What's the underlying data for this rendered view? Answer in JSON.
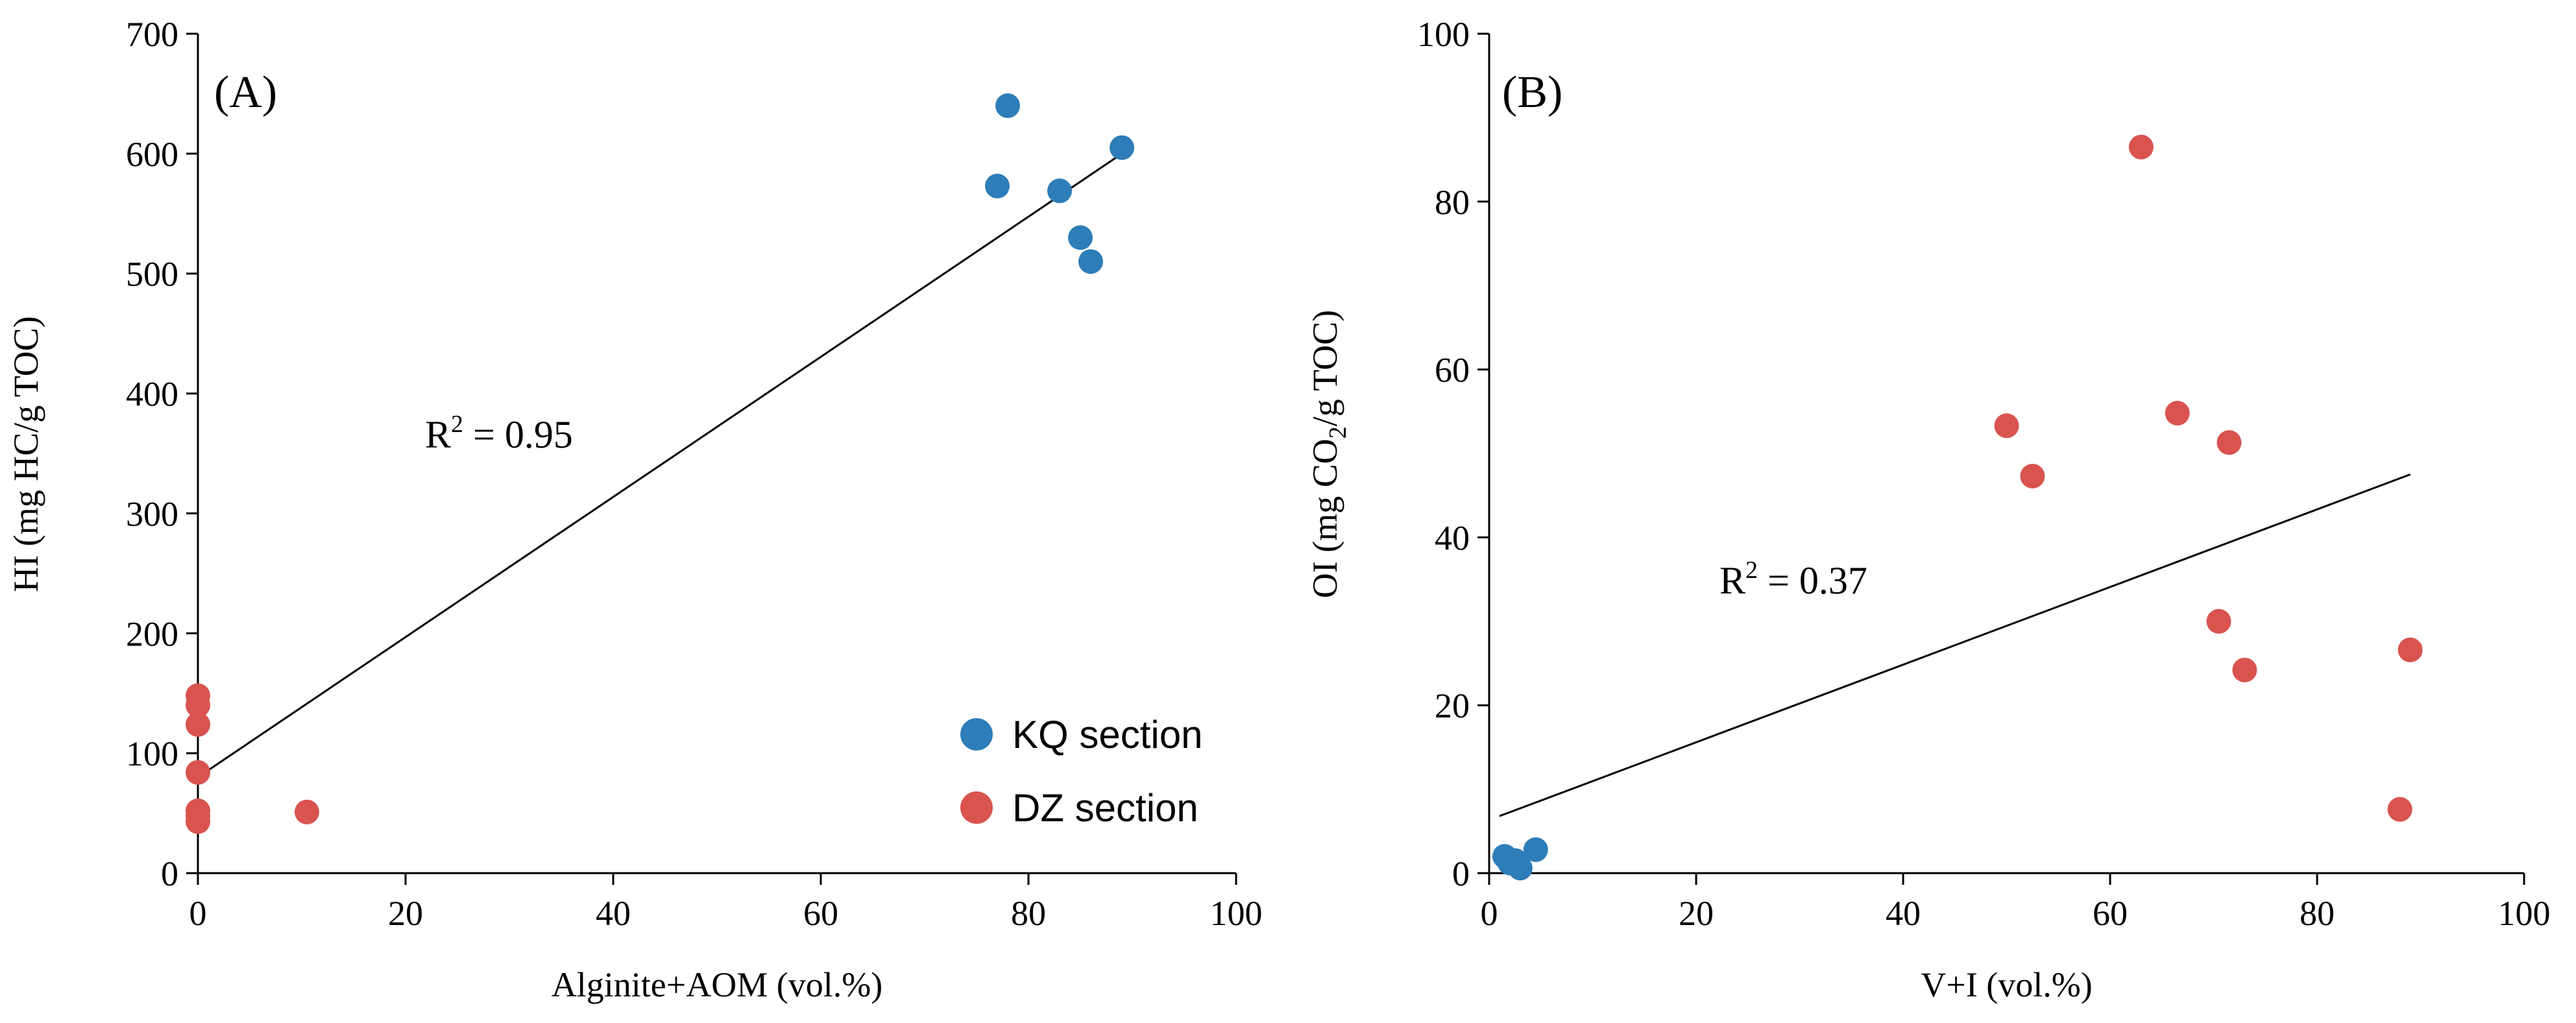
{
  "colors": {
    "KQ": "#2E7DB8",
    "DZ": "#D9534F"
  },
  "chart_data": [
    {
      "type": "scatter",
      "panel_label": "(A)",
      "xlabel": "Alginite+AOM (vol.%)",
      "ylabel_base": "HI (mg HC/g TOC)",
      "xlim": [
        0,
        100
      ],
      "ylim": [
        0,
        700
      ],
      "x_ticks": [
        "0",
        "20",
        "40",
        "60",
        "80",
        "100"
      ],
      "y_ticks": [
        "0",
        "100",
        "200",
        "300",
        "400",
        "500",
        "600",
        "700"
      ],
      "r2_base": "R",
      "r2_sup": "2",
      "r2_value": " = 0.95",
      "trendline": {
        "x1": 0,
        "y1": 80,
        "x2": 89,
        "y2": 600
      },
      "series": [
        {
          "name": "KQ section",
          "color_key": "KQ",
          "points": [
            [
              78,
              640
            ],
            [
              77,
              573
            ],
            [
              83,
              569
            ],
            [
              85,
              530
            ],
            [
              86,
              510
            ],
            [
              89,
              605
            ]
          ]
        },
        {
          "name": "DZ section",
          "color_key": "DZ",
          "points": [
            [
              0,
              148
            ],
            [
              0,
              140
            ],
            [
              0,
              124
            ],
            [
              0,
              84
            ],
            [
              0,
              52
            ],
            [
              0,
              48
            ],
            [
              0,
              43
            ],
            [
              10.5,
              51
            ]
          ]
        }
      ],
      "legend": [
        "KQ section",
        "DZ section"
      ]
    },
    {
      "type": "scatter",
      "panel_label": "(B)",
      "xlabel": "V+I (vol.%)",
      "ylabel_parts": [
        "OI (mg CO",
        "2",
        "/g TOC)"
      ],
      "xlim": [
        0,
        100
      ],
      "ylim": [
        0,
        100
      ],
      "x_ticks": [
        "0",
        "20",
        "40",
        "60",
        "80",
        "100"
      ],
      "y_ticks": [
        "0",
        "20",
        "40",
        "60",
        "80",
        "100"
      ],
      "r2_base": "R",
      "r2_sup": "2",
      "r2_value": " = 0.37",
      "trendline": {
        "x1": 1,
        "y1": 6.8,
        "x2": 89,
        "y2": 47.5
      },
      "series": [
        {
          "name": "DZ section",
          "color_key": "DZ",
          "points": [
            [
              63,
              86.5
            ],
            [
              50,
              53.3
            ],
            [
              52.5,
              47.3
            ],
            [
              66.5,
              54.8
            ],
            [
              71.5,
              51.3
            ],
            [
              70.5,
              30
            ],
            [
              73,
              24.2
            ],
            [
              89,
              26.6
            ],
            [
              88,
              7.6
            ]
          ]
        },
        {
          "name": "KQ section",
          "color_key": "KQ",
          "points": [
            [
              1.5,
              2
            ],
            [
              2.5,
              1.5
            ],
            [
              3,
              0.6
            ],
            [
              4.5,
              2.8
            ],
            [
              2,
              1.2
            ]
          ]
        }
      ]
    }
  ]
}
